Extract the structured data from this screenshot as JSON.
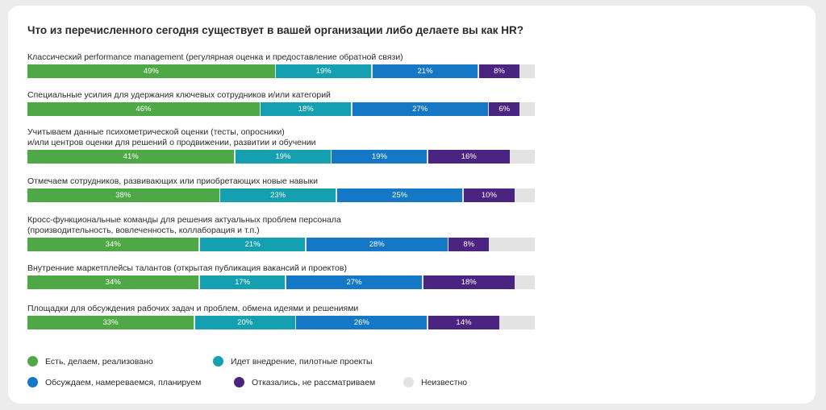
{
  "chart_data": {
    "type": "bar",
    "orientation": "horizontal-stacked",
    "title": "Что из перечисленного сегодня существует в вашей организации либо делаете вы как HR?",
    "xlim": [
      0,
      100
    ],
    "value_unit": "%",
    "categories": [
      [
        "Классический performance management (регулярная оценка и предоставление обратной связи)"
      ],
      [
        "Специальные усилия для удержания ключевых сотрудников и/или категорий"
      ],
      [
        "Учитываем данные психометрической оценки (тесты, опросники)",
        "и/или центров оценки для решений о продвижении, развитии и обучении"
      ],
      [
        "Отмечаем сотрудников, развивающих или приобретающих новые навыки"
      ],
      [
        "Кросс-функциональные команды для решения актуальных проблем персонала",
        "(производительность, вовлеченность, коллаборация и т.п.)"
      ],
      [
        "Внутренние маркетплейсы талантов (открытая публикация вакансий и проектов)"
      ],
      [
        "Площадки для обсуждения рабочих задач и проблем, обмена идеями и решениями"
      ]
    ],
    "series": [
      {
        "name": "Есть, делаем, реализовано",
        "color": "#4ea845",
        "values": [
          49,
          46,
          41,
          38,
          34,
          34,
          33
        ]
      },
      {
        "name": "Идет внедрение, пилотные проекты",
        "color": "#14a0b0",
        "values": [
          19,
          18,
          19,
          23,
          21,
          17,
          20
        ]
      },
      {
        "name": "Обсуждаем, намереваемся, планируем",
        "color": "#1478c7",
        "values": [
          21,
          27,
          19,
          25,
          28,
          27,
          26
        ]
      },
      {
        "name": "Отказались, не рассматриваем",
        "color": "#4b2380",
        "values": [
          8,
          6,
          16,
          10,
          8,
          18,
          14
        ]
      },
      {
        "name": "Неизвестно",
        "color": "#e3e3e3",
        "values": [
          3,
          3,
          5,
          4,
          9,
          4,
          7
        ]
      }
    ],
    "legend_position": "bottom-left",
    "grid": false
  }
}
